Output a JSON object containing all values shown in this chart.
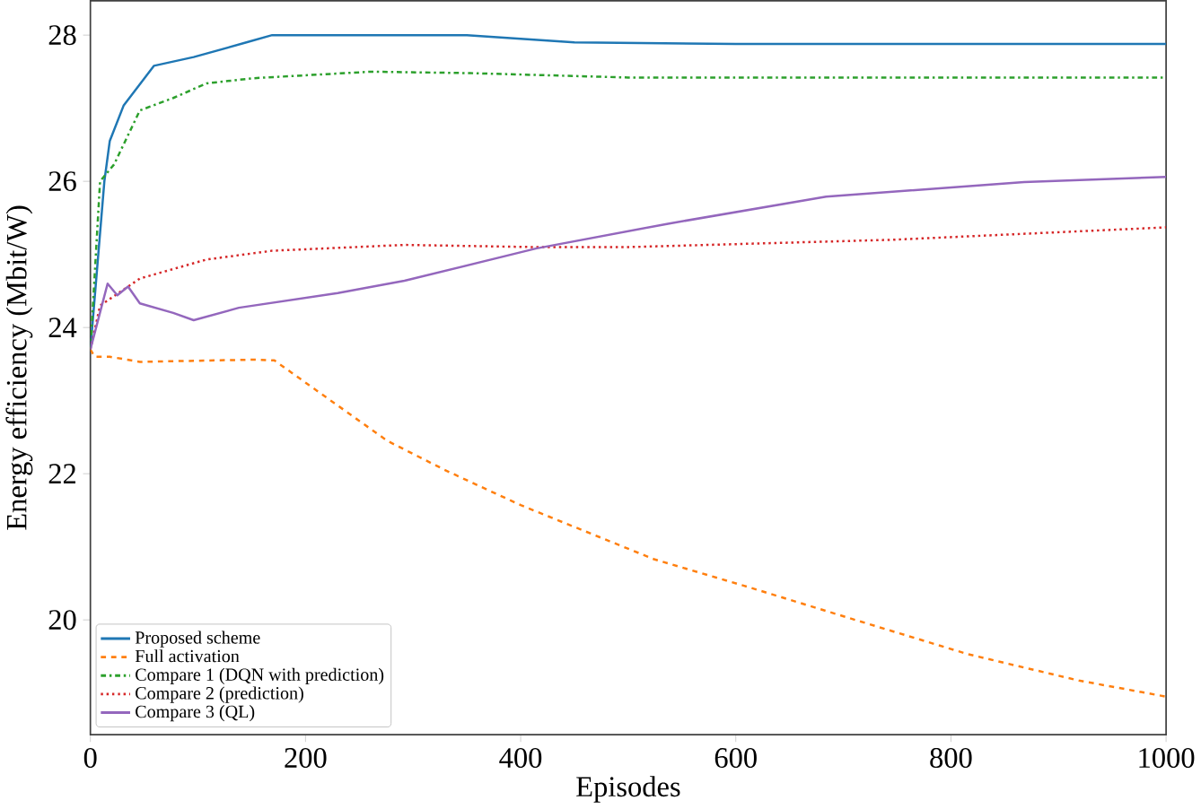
{
  "chart_data": {
    "type": "line",
    "xlabel": "Episodes",
    "ylabel": "Energy efficiency (Mbit/W)",
    "xlim": [
      0,
      1000
    ],
    "ylim": [
      18.43,
      28.47
    ],
    "xticks": [
      0,
      200,
      400,
      600,
      800,
      1000
    ],
    "yticks": [
      20,
      22,
      24,
      26,
      28
    ],
    "grid": false,
    "legend": "bottom left",
    "marker": "none",
    "series": [
      {
        "name": "Proposed scheme",
        "color": "#1f77b4",
        "line_style": "solid",
        "x": [
          0,
          13,
          18,
          31,
          59,
          96,
          145,
          169,
          250,
          350,
          450,
          600,
          800,
          1000
        ],
        "values": [
          23.7,
          26.0,
          26.55,
          27.04,
          27.58,
          27.7,
          27.9,
          28.0,
          28.0,
          28.0,
          27.9,
          27.88,
          27.88,
          27.88
        ]
      },
      {
        "name": "Full activation",
        "color": "#ff7f0e",
        "line_style": "dashed",
        "x": [
          0,
          4,
          18,
          46,
          151,
          171,
          276,
          331,
          400,
          524,
          607,
          711,
          816,
          919,
          1000
        ],
        "values": [
          23.7,
          23.6,
          23.6,
          23.53,
          23.56,
          23.55,
          22.45,
          22.04,
          21.57,
          20.83,
          20.47,
          20.0,
          19.53,
          19.17,
          18.95
        ]
      },
      {
        "name": "Compare 1 (DQN with prediction)",
        "color": "#2ca02c",
        "line_style": "dashdotted",
        "x": [
          0,
          9,
          22,
          46,
          77,
          108,
          151,
          261,
          353,
          500,
          700,
          1000
        ],
        "values": [
          23.7,
          26.0,
          26.23,
          26.97,
          27.14,
          27.34,
          27.41,
          27.5,
          27.48,
          27.42,
          27.42,
          27.42
        ]
      },
      {
        "name": "Compare 2 (prediction)",
        "color": "#d62728",
        "line_style": "dotted",
        "x": [
          0,
          9,
          46,
          108,
          169,
          292,
          414,
          500,
          745,
          1000
        ],
        "values": [
          23.7,
          24.3,
          24.67,
          24.93,
          25.05,
          25.13,
          25.1,
          25.1,
          25.2,
          25.37
        ]
      },
      {
        "name": "Compare 3 (QL)",
        "color": "#9467bd",
        "line_style": "solid",
        "x": [
          0,
          16,
          25,
          35,
          46,
          77,
          96,
          138,
          230,
          292,
          414,
          537,
          684,
          868,
          1000
        ],
        "values": [
          23.7,
          24.6,
          24.44,
          24.56,
          24.33,
          24.2,
          24.1,
          24.27,
          24.47,
          24.64,
          25.08,
          25.42,
          25.79,
          25.99,
          26.06
        ]
      }
    ]
  }
}
